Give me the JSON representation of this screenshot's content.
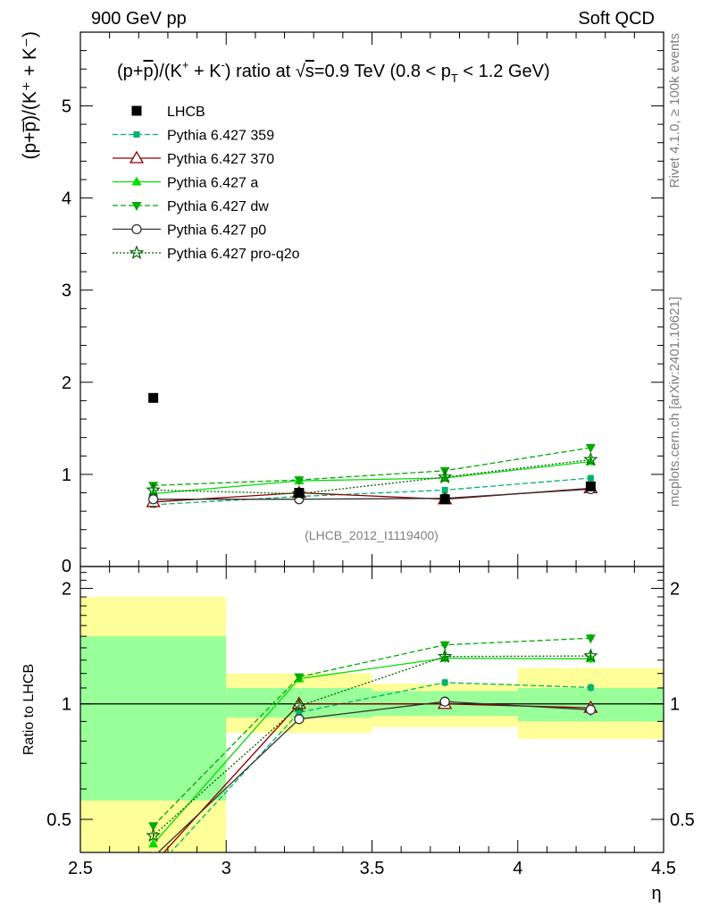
{
  "header": {
    "left": "900 GeV pp",
    "right": "Soft QCD"
  },
  "side_labels": {
    "rivet": "Rivet 4.1.0, ≥ 100k events",
    "mcplots": "mcplots.cern.ch [arXiv:2401.10621]"
  },
  "chart_data": {
    "type": "line",
    "title": "(p+p̅)/(K⁺ + K⁻) ratio at √s=0.9 TeV (0.8 < p_T < 1.2 GeV)",
    "title_parts": {
      "prefix": "(p+",
      "pbar": "p",
      "mid1": ")/(K",
      "sup_plus": "+",
      "mid2": " + K",
      "sup_minus": "-",
      "mid3": ") ratio at ",
      "sqrt": "√",
      "s": "s",
      "energy": "=0.9 TeV (0.8 < p",
      "sub_T": "T",
      "range_end": " < 1.2 GeV)"
    },
    "ylabel": "(p+p̅)/(K⁺ + K⁻)",
    "xlabel": "η",
    "watermark": "(LHCB_2012_I1119400)",
    "x": [
      2.75,
      3.25,
      3.75,
      4.25
    ],
    "xlim": [
      2.5,
      4.5
    ],
    "xticks": [
      "2.5",
      "3",
      "3.5",
      "4",
      "4.5"
    ],
    "main": {
      "ylim": [
        0,
        5.8
      ],
      "yticks": [
        "1",
        "2",
        "3",
        "4",
        "5"
      ],
      "ytick_partial": "0"
    },
    "data": {
      "name": "LHCB",
      "values": [
        1.83,
        0.8,
        0.73,
        0.87
      ],
      "errors": [
        0.02,
        0.02,
        0.02,
        0.02
      ]
    },
    "series": [
      {
        "name": "Pythia 6.427 359",
        "color": "#00b36b",
        "dash": "6,3",
        "marker": "square-small",
        "values": [
          0.67,
          0.76,
          0.83,
          0.96
        ],
        "errors": [
          0.01,
          0.015,
          0.02,
          0.025
        ]
      },
      {
        "name": "Pythia 6.427 370",
        "color": "#8b0000",
        "dash": "",
        "marker": "triangle-open",
        "values": [
          0.7,
          0.8,
          0.73,
          0.85
        ],
        "errors": [
          0.01,
          0.02,
          0.02,
          0.03
        ]
      },
      {
        "name": "Pythia 6.427 a",
        "color": "#00dd00",
        "dash": "",
        "marker": "triangle-filled",
        "values": [
          0.79,
          0.93,
          0.96,
          1.14
        ],
        "errors": [
          0.01,
          0.02,
          0.025,
          0.03
        ]
      },
      {
        "name": "Pythia 6.427 dw",
        "color": "#00aa00",
        "dash": "6,3",
        "marker": "triangle-down-filled",
        "values": [
          0.88,
          0.94,
          1.04,
          1.29
        ],
        "errors": [
          0.015,
          0.02,
          0.025,
          0.035
        ]
      },
      {
        "name": "Pythia 6.427 p0",
        "color": "#333333",
        "dash": "",
        "marker": "circle-open",
        "values": [
          0.73,
          0.73,
          0.74,
          0.84
        ],
        "errors": [
          0.01,
          0.02,
          0.02,
          0.03
        ]
      },
      {
        "name": "Pythia 6.427 pro-q2o",
        "color": "#006400",
        "dash": "2,2",
        "marker": "star",
        "values": [
          0.83,
          0.79,
          0.97,
          1.16
        ],
        "errors": [
          0.015,
          0.02,
          0.025,
          0.03
        ]
      }
    ],
    "ratio": {
      "ylabel": "Ratio to LHCB",
      "ylim": [
        0.41,
        2.28
      ],
      "yticks": [
        {
          "v": 0.5,
          "label": "0.5"
        },
        {
          "v": 1,
          "label": "1"
        },
        {
          "v": 2,
          "label": "2"
        }
      ],
      "bands": [
        {
          "x0": 2.5,
          "x1": 3.0,
          "stat": [
            0.56,
            1.5
          ],
          "total": [
            0.41,
            1.9
          ]
        },
        {
          "x0": 3.0,
          "x1": 3.5,
          "stat": [
            0.92,
            1.1
          ],
          "total": [
            0.84,
            1.2
          ]
        },
        {
          "x0": 3.5,
          "x1": 4.0,
          "stat": [
            0.93,
            1.08
          ],
          "total": [
            0.87,
            1.13
          ]
        },
        {
          "x0": 4.0,
          "x1": 4.5,
          "stat": [
            0.9,
            1.1
          ],
          "total": [
            0.81,
            1.24
          ]
        }
      ]
    }
  }
}
